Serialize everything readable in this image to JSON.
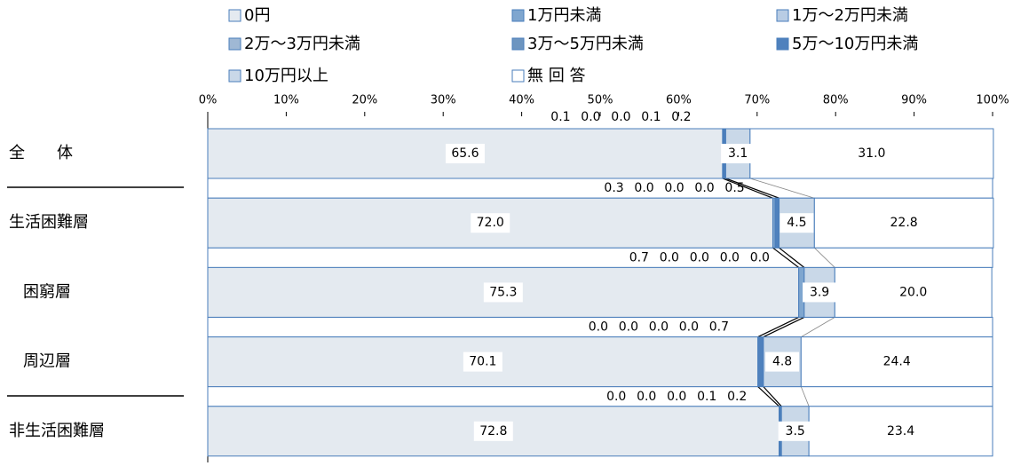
{
  "chart_data": {
    "type": "stacked-bar-horizontal",
    "categories": [
      "全　　体",
      "生活困難層",
      "困窮層",
      "周辺層",
      "非生活困難層"
    ],
    "series": [
      {
        "name": "0円",
        "color": "#e4eaf0",
        "values": [
          65.6,
          72.0,
          75.3,
          70.1,
          72.8
        ],
        "value_labels": [
          "65.6",
          "72.0",
          "75.3",
          "70.1",
          "72.8"
        ]
      },
      {
        "name": "1万円未満",
        "color": "#7fa6cf",
        "values": [
          0.1,
          0.3,
          0.7,
          0.0,
          0.0
        ],
        "value_labels": [
          "0.1",
          "0.3",
          "0.7",
          "0.0",
          "0.0"
        ]
      },
      {
        "name": "1万～2万円未満",
        "color": "#b8cce4",
        "values": [
          0.0,
          0.0,
          0.0,
          0.0,
          0.0
        ],
        "value_labels": [
          "0.0",
          "0.0",
          "0.0",
          "0.0",
          "0.0"
        ]
      },
      {
        "name": "2万～3万円未満",
        "color": "#9fb8d4",
        "values": [
          0.0,
          0.0,
          0.0,
          0.0,
          0.0
        ],
        "value_labels": [
          "0.0",
          "0.0",
          "0.0",
          "0.0",
          "0.0"
        ]
      },
      {
        "name": "3万～5万円未満",
        "color": "#6d95c0",
        "values": [
          0.1,
          0.0,
          0.0,
          0.0,
          0.1
        ],
        "value_labels": [
          "0.1",
          "0.0",
          "0.0",
          "0.0",
          "0.1"
        ]
      },
      {
        "name": "5万～10万円未満",
        "color": "#4f81bd",
        "values": [
          0.2,
          0.5,
          0.0,
          0.7,
          0.2
        ],
        "value_labels": [
          "0.2",
          "0.5",
          "0.0",
          "0.7",
          "0.2"
        ]
      },
      {
        "name": "10万円以上",
        "color": "#c9d8e8",
        "values": [
          3.1,
          4.5,
          3.9,
          4.8,
          3.5
        ],
        "value_labels": [
          "3.1",
          "4.5",
          "3.9",
          "4.8",
          "3.5"
        ]
      },
      {
        "name": "無 回 答",
        "color": "#ffffff",
        "values": [
          31.0,
          22.8,
          20.0,
          24.4,
          23.4
        ],
        "value_labels": [
          "31.0",
          "22.8",
          "20.0",
          "24.4",
          "23.4"
        ]
      }
    ],
    "xlim": [
      0,
      100
    ],
    "xticks": [
      {
        "value": 0,
        "label": "0%"
      },
      {
        "value": 10,
        "label": "10%"
      },
      {
        "value": 20,
        "label": "20%"
      },
      {
        "value": 30,
        "label": "30%"
      },
      {
        "value": 40,
        "label": "40%"
      },
      {
        "value": 50,
        "label": "50%"
      },
      {
        "value": 60,
        "label": "60%"
      },
      {
        "value": 70,
        "label": "70%"
      },
      {
        "value": 80,
        "label": "80%"
      },
      {
        "value": 90,
        "label": "90%"
      },
      {
        "value": 100,
        "label": "100%"
      }
    ]
  }
}
